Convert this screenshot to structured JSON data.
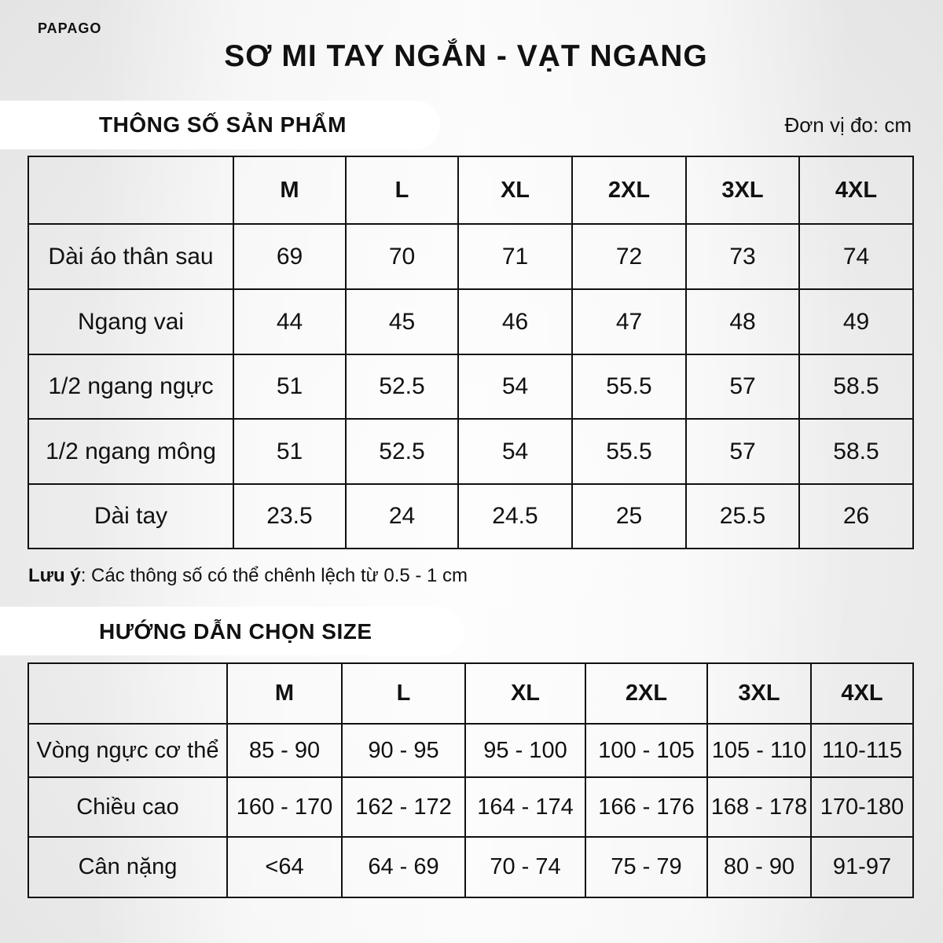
{
  "logo": "PAPAGO",
  "title": "SƠ MI TAY NGẮN - VẠT NGANG",
  "specs": {
    "heading": "THÔNG SỐ SẢN PHẨM",
    "unit": "Đơn vị đo: cm",
    "sizes": [
      "M",
      "L",
      "XL",
      "2XL",
      "3XL",
      "4XL"
    ],
    "rows": [
      {
        "label": "Dài áo thân sau",
        "values": [
          "69",
          "70",
          "71",
          "72",
          "73",
          "74"
        ]
      },
      {
        "label": "Ngang vai",
        "values": [
          "44",
          "45",
          "46",
          "47",
          "48",
          "49"
        ]
      },
      {
        "label": "1/2 ngang ngực",
        "values": [
          "51",
          "52.5",
          "54",
          "55.5",
          "57",
          "58.5"
        ]
      },
      {
        "label": "1/2 ngang mông",
        "values": [
          "51",
          "52.5",
          "54",
          "55.5",
          "57",
          "58.5"
        ]
      },
      {
        "label": "Dài tay",
        "values": [
          "23.5",
          "24",
          "24.5",
          "25",
          "25.5",
          "26"
        ]
      }
    ]
  },
  "note": {
    "label": "Lưu ý",
    "text": ": Các thông số có thể chênh lệch từ 0.5 - 1 cm"
  },
  "guide": {
    "heading": "HƯỚNG DẪN CHỌN SIZE",
    "sizes": [
      "M",
      "L",
      "XL",
      "2XL",
      "3XL",
      "4XL"
    ],
    "rows": [
      {
        "label": "Vòng ngực cơ thể",
        "values": [
          "85 - 90",
          "90 - 95",
          "95 - 100",
          "100 - 105",
          "105 - 110",
          "110-115"
        ]
      },
      {
        "label": "Chiều cao",
        "values": [
          "160 - 170",
          "162 - 172",
          "164 - 174",
          "166 - 176",
          "168 - 178",
          "170-180"
        ]
      },
      {
        "label": "Cân nặng",
        "values": [
          "<64",
          "64 - 69",
          "70 - 74",
          "75 - 79",
          "80 - 90",
          "91-97"
        ]
      }
    ]
  }
}
